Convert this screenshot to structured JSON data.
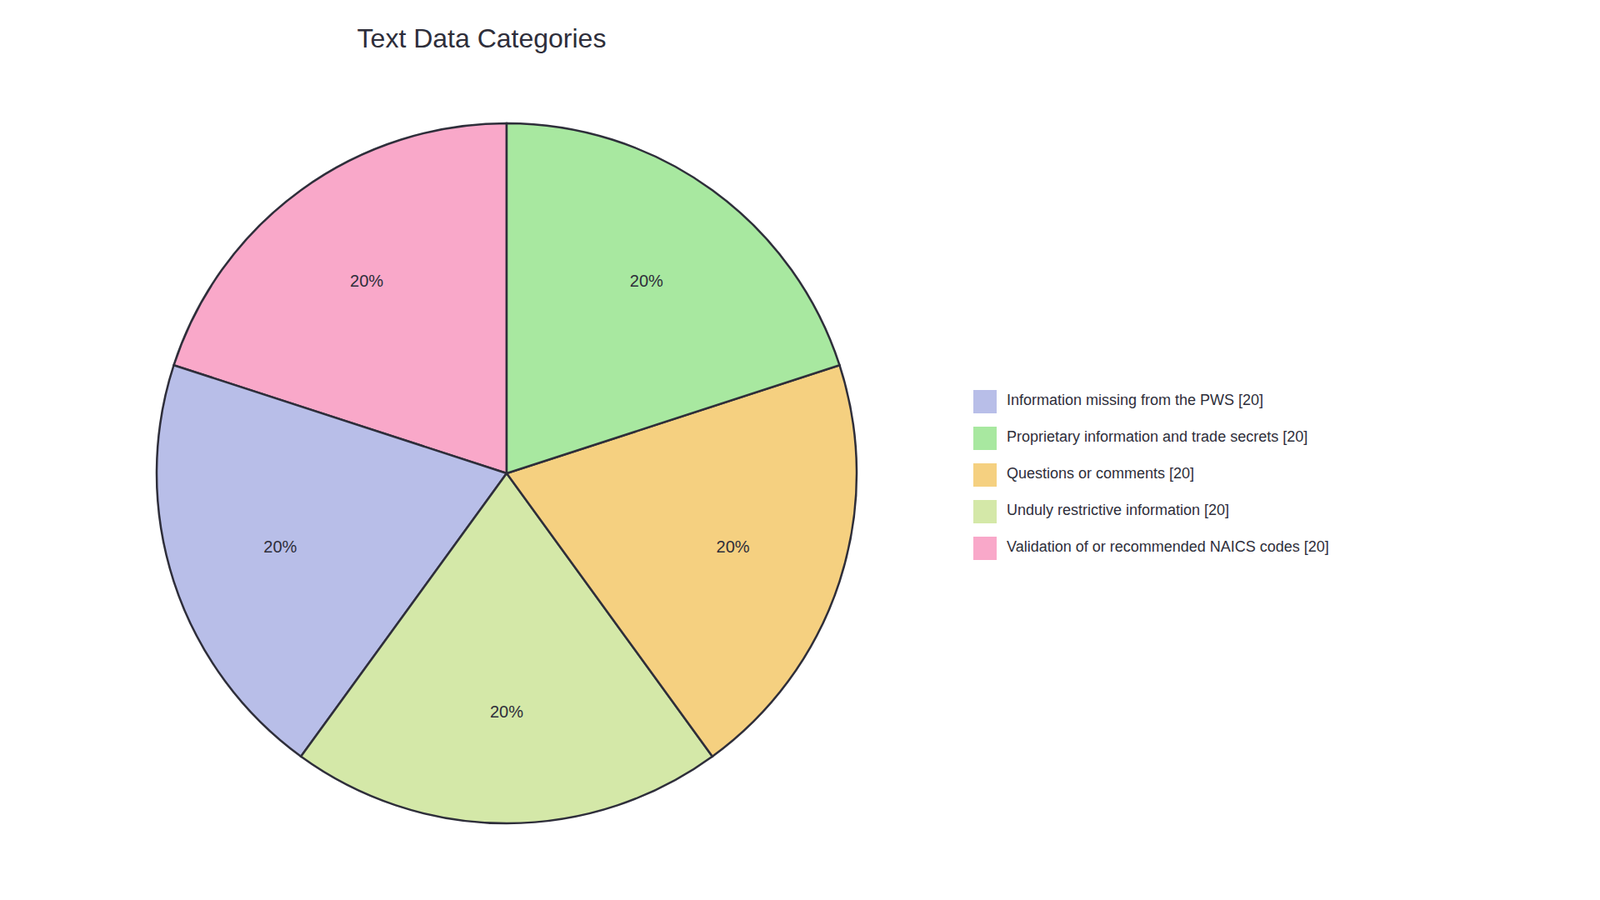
{
  "chart_data": {
    "type": "pie",
    "title": "Text Data Categories",
    "categories": [
      "Validation of or recommended NAICS codes [20]",
      "Information missing from the PWS [20]",
      "Unduly restrictive information [20]",
      "Questions or comments [20]",
      "Proprietary information and trade secrets [20]"
    ],
    "values": [
      20,
      20,
      20,
      20,
      20
    ],
    "value_labels": [
      "20%",
      "20%",
      "20%",
      "20%",
      "20%"
    ],
    "colors": [
      "#F9A8C9",
      "#B8BEE8",
      "#D4E8A8",
      "#F5D080",
      "#A8E8A0"
    ],
    "data_labels": true,
    "legend": "right"
  }
}
